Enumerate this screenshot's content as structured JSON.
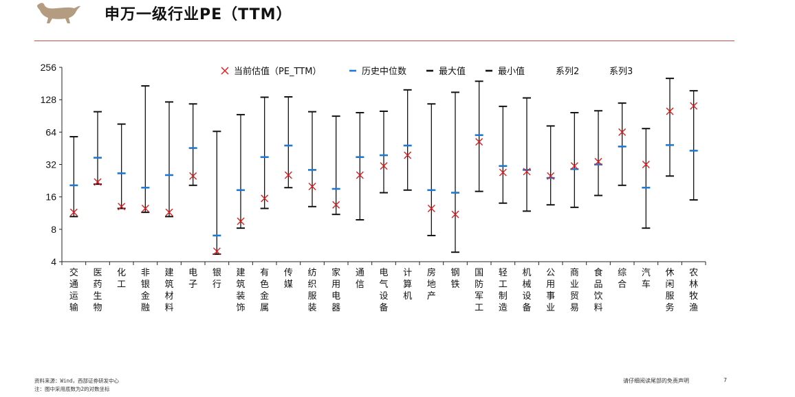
{
  "header": {
    "title": "申万一级行业PE（TTM）",
    "accent_color": "#c0504d",
    "logo_icon": "bull-icon",
    "logo_color": "#b39c80"
  },
  "footer": {
    "source": "资料来源：Wind，西部证券研发中心",
    "note": "注：图中采用底数为2的对数坐标",
    "disclaimer": "请仔细阅读尾部的免责声明",
    "page": "7"
  },
  "chart_data": {
    "type": "scatter",
    "yscale": "log2",
    "ylim": [
      4,
      256
    ],
    "yticks": [
      4,
      8,
      16,
      32,
      64,
      128,
      256
    ],
    "ytick_labels": [
      "4",
      "8",
      "16",
      "32",
      "64",
      "128",
      "256"
    ],
    "grid": false,
    "legend_position": "top",
    "legend": [
      {
        "label": "当前估值（PE_TTM）",
        "marker": "x",
        "color": "#e31a1c"
      },
      {
        "label": "历史中位数",
        "marker": "dash",
        "color": "#1f78d1"
      },
      {
        "label": "最大值",
        "marker": "dash",
        "color": "#111111"
      },
      {
        "label": "最小值",
        "marker": "dash",
        "color": "#111111"
      },
      {
        "label": "系列2",
        "marker": "none",
        "color": "#111111"
      },
      {
        "label": "系列3",
        "marker": "none",
        "color": "#111111"
      }
    ],
    "categories": [
      "交通运输",
      "医药生物",
      "化工",
      "非银金融",
      "建筑材料",
      "电子",
      "银行",
      "建筑装饰",
      "有色金属",
      "传媒",
      "纺织服装",
      "家用电器",
      "通信",
      "电气设备",
      "计算机",
      "房地产",
      "钢铁",
      "国防军工",
      "轻工制造",
      "机械设备",
      "公用事业",
      "商业贸易",
      "食品饮料",
      "综合",
      "汽车",
      "休闲服务",
      "农林牧渔"
    ],
    "series": [
      {
        "name": "当前估值（PE_TTM）",
        "values": [
          11.5,
          22,
          13,
          12.5,
          11.5,
          25,
          5,
          9.5,
          15.5,
          25.5,
          20,
          13.5,
          25.5,
          31,
          39,
          12.5,
          11,
          52,
          27,
          27.5,
          25,
          31,
          34,
          64,
          32,
          100,
          112
        ]
      },
      {
        "name": "历史中位数",
        "values": [
          20.5,
          37,
          26.5,
          19.5,
          25.5,
          45.5,
          7,
          18.5,
          37.5,
          48,
          28.5,
          19,
          37.5,
          39,
          48,
          18.5,
          17.5,
          60,
          31,
          28.5,
          24,
          29,
          32,
          47,
          19.5,
          48.5,
          43
        ]
      },
      {
        "name": "最大值",
        "values": [
          58,
          99,
          76,
          172,
          122,
          117,
          65,
          93,
          135,
          136,
          99,
          90,
          97,
          100,
          158,
          117,
          150,
          190,
          111,
          133,
          73,
          97,
          101,
          119,
          69,
          202,
          155
        ]
      },
      {
        "name": "最小值",
        "values": [
          10.5,
          21,
          12.5,
          11.5,
          10.5,
          20.5,
          4.7,
          8.2,
          12.5,
          19.5,
          13,
          11,
          9.8,
          17.5,
          18.5,
          7,
          4.9,
          18,
          14,
          11.8,
          13.5,
          12.8,
          16.5,
          20.5,
          8.2,
          25,
          15
        ]
      }
    ]
  }
}
